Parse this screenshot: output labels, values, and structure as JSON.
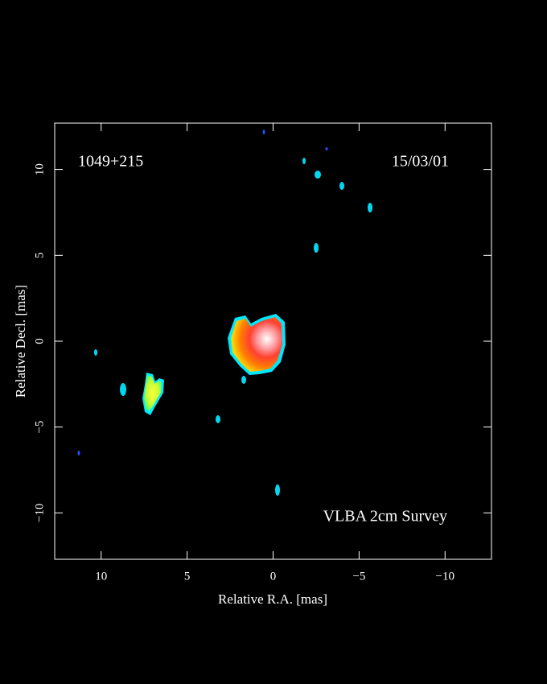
{
  "chart_data": {
    "type": "image",
    "source": "1049+215",
    "date": "15/03/01",
    "survey": "VLBA 2cm Survey",
    "xlabel": "Relative R.A. [mas]",
    "ylabel": "Relative Decl. [mas]",
    "xlim": [
      12.7,
      -12.7
    ],
    "ylim": [
      -12.7,
      12.7
    ],
    "xticks": [
      10,
      5,
      0,
      {
        "value": -5,
        "label": "−5"
      },
      {
        "value": -10,
        "label": "−10"
      }
    ],
    "yticks": [
      {
        "value": -10,
        "label": "−10"
      },
      {
        "value": -5,
        "label": "−5"
      },
      0,
      5,
      10
    ]
  }
}
